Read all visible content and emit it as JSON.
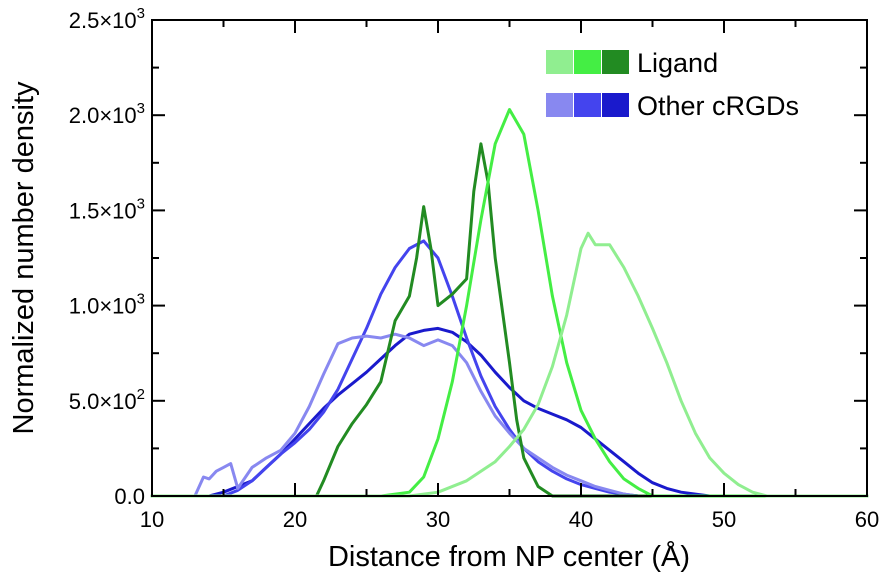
{
  "chart_data": {
    "type": "line",
    "xlabel": "Distance from NP center (Å)",
    "ylabel": "Normalized number density",
    "xlim": [
      10,
      60
    ],
    "ylim": [
      0,
      2500
    ],
    "xticks": [
      {
        "value": 10,
        "label": "10"
      },
      {
        "value": 20,
        "label": "20"
      },
      {
        "value": 30,
        "label": "30"
      },
      {
        "value": 40,
        "label": "40"
      },
      {
        "value": 50,
        "label": "50"
      },
      {
        "value": 60,
        "label": "60"
      }
    ],
    "yticks": [
      {
        "value": 0,
        "mantissa": "0.0",
        "exp": ""
      },
      {
        "value": 500,
        "mantissa": "5.0×10",
        "exp": "2"
      },
      {
        "value": 1000,
        "mantissa": "1.0×10",
        "exp": "3"
      },
      {
        "value": 1500,
        "mantissa": "1.5×10",
        "exp": "3"
      },
      {
        "value": 2000,
        "mantissa": "2.0×10",
        "exp": "3"
      },
      {
        "value": 2500,
        "mantissa": "2.5×10",
        "exp": "3"
      }
    ],
    "legend": {
      "position": "top-right",
      "entries": [
        {
          "label": "Ligand",
          "colors": [
            "#90ee90",
            "#44ee44",
            "#228b22"
          ]
        },
        {
          "label": "Other cRGDs",
          "colors": [
            "#8888f0",
            "#4444ee",
            "#1a1acc"
          ]
        }
      ]
    },
    "series": [
      {
        "color": "#1a1acc",
        "points": [
          [
            10,
            0
          ],
          [
            14,
            0
          ],
          [
            15,
            20
          ],
          [
            16,
            50
          ],
          [
            17,
            80
          ],
          [
            18,
            150
          ],
          [
            19,
            220
          ],
          [
            20,
            300
          ],
          [
            21,
            380
          ],
          [
            22,
            460
          ],
          [
            23,
            530
          ],
          [
            24,
            590
          ],
          [
            25,
            650
          ],
          [
            26,
            720
          ],
          [
            27,
            790
          ],
          [
            28,
            850
          ],
          [
            29,
            870
          ],
          [
            30,
            880
          ],
          [
            31,
            860
          ],
          [
            32,
            810
          ],
          [
            33,
            740
          ],
          [
            34,
            650
          ],
          [
            35,
            570
          ],
          [
            36,
            500
          ],
          [
            37,
            460
          ],
          [
            38,
            430
          ],
          [
            39,
            400
          ],
          [
            40,
            360
          ],
          [
            41,
            300
          ],
          [
            42,
            240
          ],
          [
            43,
            180
          ],
          [
            44,
            120
          ],
          [
            45,
            70
          ],
          [
            46,
            40
          ],
          [
            47,
            20
          ],
          [
            48,
            10
          ],
          [
            49,
            0
          ],
          [
            60,
            0
          ]
        ]
      },
      {
        "color": "#4444ee",
        "points": [
          [
            10,
            0
          ],
          [
            15,
            0
          ],
          [
            16,
            30
          ],
          [
            17,
            80
          ],
          [
            18,
            150
          ],
          [
            19,
            220
          ],
          [
            20,
            280
          ],
          [
            21,
            350
          ],
          [
            22,
            440
          ],
          [
            23,
            560
          ],
          [
            24,
            720
          ],
          [
            25,
            880
          ],
          [
            26,
            1060
          ],
          [
            27,
            1200
          ],
          [
            28,
            1300
          ],
          [
            29,
            1340
          ],
          [
            30,
            1250
          ],
          [
            31,
            1050
          ],
          [
            32,
            830
          ],
          [
            33,
            630
          ],
          [
            34,
            470
          ],
          [
            35,
            350
          ],
          [
            36,
            250
          ],
          [
            37,
            180
          ],
          [
            38,
            130
          ],
          [
            39,
            90
          ],
          [
            40,
            60
          ],
          [
            41,
            40
          ],
          [
            42,
            20
          ],
          [
            43,
            10
          ],
          [
            44,
            0
          ],
          [
            60,
            0
          ]
        ]
      },
      {
        "color": "#8888f0",
        "points": [
          [
            10,
            0
          ],
          [
            13,
            0
          ],
          [
            13.6,
            100
          ],
          [
            14,
            90
          ],
          [
            14.5,
            130
          ],
          [
            15,
            150
          ],
          [
            15.5,
            170
          ],
          [
            16,
            40
          ],
          [
            17,
            150
          ],
          [
            18,
            200
          ],
          [
            19,
            240
          ],
          [
            20,
            330
          ],
          [
            21,
            470
          ],
          [
            22,
            640
          ],
          [
            23,
            800
          ],
          [
            24,
            830
          ],
          [
            25,
            840
          ],
          [
            26,
            830
          ],
          [
            27,
            850
          ],
          [
            28,
            830
          ],
          [
            29,
            790
          ],
          [
            30,
            820
          ],
          [
            31,
            790
          ],
          [
            32,
            700
          ],
          [
            33,
            550
          ],
          [
            34,
            420
          ],
          [
            35,
            330
          ],
          [
            36,
            250
          ],
          [
            37,
            200
          ],
          [
            38,
            150
          ],
          [
            39,
            110
          ],
          [
            40,
            80
          ],
          [
            41,
            50
          ],
          [
            42,
            30
          ],
          [
            43,
            10
          ],
          [
            44,
            0
          ],
          [
            60,
            0
          ]
        ]
      },
      {
        "color": "#228b22",
        "points": [
          [
            10,
            0
          ],
          [
            21.5,
            0
          ],
          [
            22,
            80
          ],
          [
            23,
            260
          ],
          [
            24,
            380
          ],
          [
            25,
            480
          ],
          [
            26,
            600
          ],
          [
            27,
            920
          ],
          [
            28,
            1050
          ],
          [
            28.5,
            1250
          ],
          [
            29,
            1520
          ],
          [
            29.5,
            1300
          ],
          [
            30,
            1000
          ],
          [
            31,
            1060
          ],
          [
            32,
            1140
          ],
          [
            32.5,
            1600
          ],
          [
            33,
            1850
          ],
          [
            33.5,
            1650
          ],
          [
            34,
            1250
          ],
          [
            35,
            700
          ],
          [
            35.5,
            400
          ],
          [
            36,
            200
          ],
          [
            37,
            50
          ],
          [
            38,
            0
          ],
          [
            60,
            0
          ]
        ]
      },
      {
        "color": "#44ee44",
        "points": [
          [
            10,
            0
          ],
          [
            26,
            0
          ],
          [
            28,
            20
          ],
          [
            29,
            100
          ],
          [
            30,
            300
          ],
          [
            31,
            600
          ],
          [
            32,
            1000
          ],
          [
            33,
            1450
          ],
          [
            34,
            1850
          ],
          [
            35,
            2030
          ],
          [
            36,
            1900
          ],
          [
            37,
            1500
          ],
          [
            38,
            1050
          ],
          [
            39,
            700
          ],
          [
            40,
            450
          ],
          [
            41,
            300
          ],
          [
            42,
            180
          ],
          [
            43,
            90
          ],
          [
            44,
            40
          ],
          [
            45,
            0
          ],
          [
            60,
            0
          ]
        ]
      },
      {
        "color": "#90ee90",
        "points": [
          [
            10,
            0
          ],
          [
            28,
            0
          ],
          [
            30,
            20
          ],
          [
            32,
            80
          ],
          [
            34,
            180
          ],
          [
            35,
            260
          ],
          [
            36,
            350
          ],
          [
            37,
            480
          ],
          [
            38,
            680
          ],
          [
            39,
            950
          ],
          [
            40,
            1300
          ],
          [
            40.5,
            1380
          ],
          [
            41,
            1320
          ],
          [
            42,
            1320
          ],
          [
            43,
            1200
          ],
          [
            44,
            1050
          ],
          [
            45,
            880
          ],
          [
            46,
            700
          ],
          [
            47,
            500
          ],
          [
            48,
            330
          ],
          [
            49,
            200
          ],
          [
            50,
            120
          ],
          [
            51,
            60
          ],
          [
            52,
            20
          ],
          [
            53,
            0
          ],
          [
            60,
            0
          ]
        ]
      }
    ]
  }
}
